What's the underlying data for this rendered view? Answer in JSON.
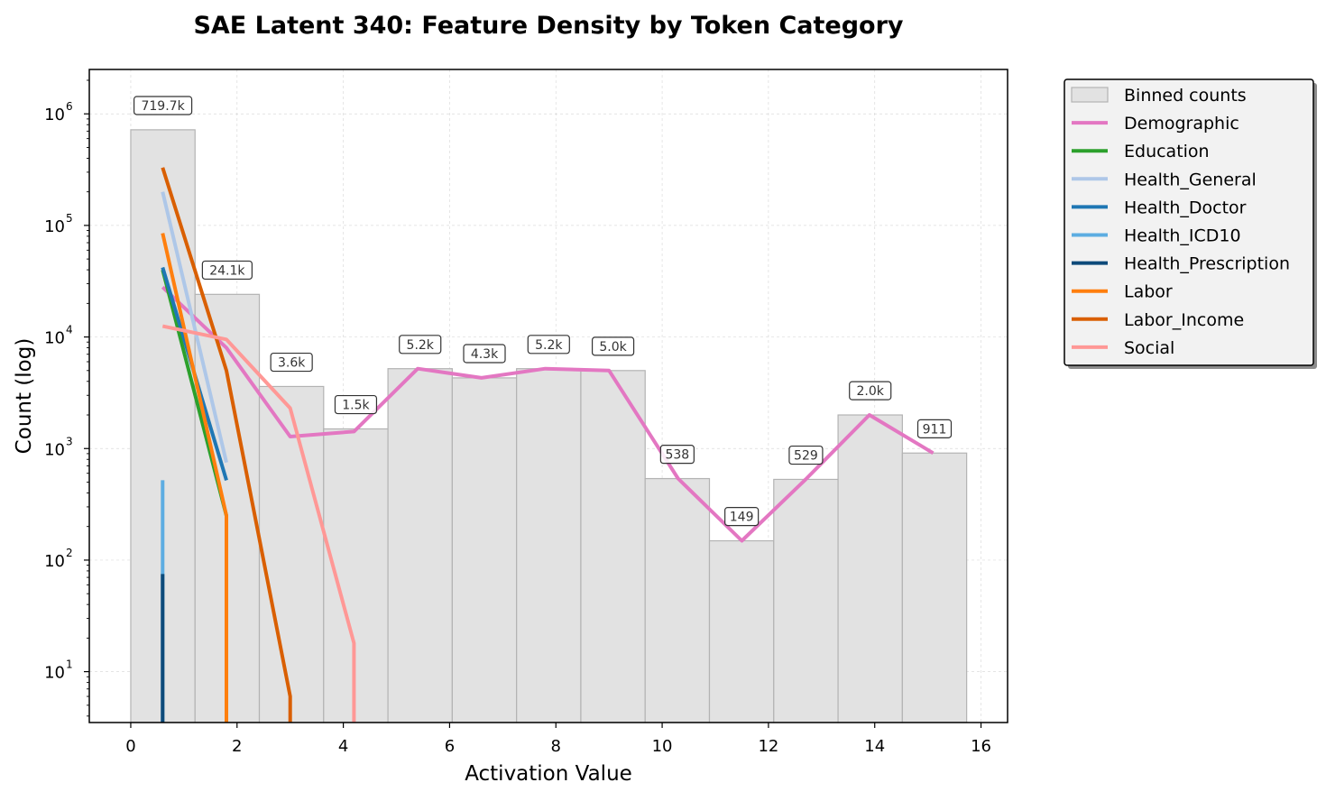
{
  "chart_data": {
    "type": "bar+line",
    "title": "SAE Latent 340: Feature Density by Token Category",
    "xlabel": "Activation Value",
    "ylabel": "Count (log)",
    "yscale": "log",
    "xlim": [
      -0.78,
      16.5
    ],
    "ylim": [
      3.5,
      2500000
    ],
    "grid": true,
    "legend_position": "outside-right",
    "x_ticks": [
      0,
      2,
      4,
      6,
      8,
      10,
      12,
      14,
      16
    ],
    "y_ticks": [
      {
        "value": 10,
        "base": "10",
        "exp": "1"
      },
      {
        "value": 100,
        "base": "10",
        "exp": "2"
      },
      {
        "value": 1000,
        "base": "10",
        "exp": "3"
      },
      {
        "value": 10000,
        "base": "10",
        "exp": "4"
      },
      {
        "value": 100000,
        "base": "10",
        "exp": "5"
      },
      {
        "value": 1000000,
        "base": "10",
        "exp": "6"
      }
    ],
    "bars": {
      "name": "Binned counts",
      "color": "#e2e2e2",
      "edge_color": "#b3b3b3",
      "bin_edges": [
        0,
        1.21,
        2.42,
        3.63,
        4.84,
        6.05,
        7.26,
        8.47,
        9.68,
        10.89,
        12.1,
        13.31,
        14.52,
        15.73
      ],
      "counts": [
        719700,
        24100,
        3600,
        1500,
        5200,
        4300,
        5200,
        5000,
        538,
        149,
        529,
        2000,
        911
      ],
      "labels": [
        "719.7k",
        "24.1k",
        "3.6k",
        "1.5k",
        "5.2k",
        "4.3k",
        "5.2k",
        "5.0k",
        "538",
        "149",
        "529",
        "2.0k",
        "911"
      ]
    },
    "series": [
      {
        "name": "Demographic",
        "color": "#e377c2",
        "points": [
          [
            0.6,
            28000
          ],
          [
            1.8,
            8000
          ],
          [
            3.0,
            1280
          ],
          [
            4.2,
            1420
          ],
          [
            5.4,
            5200
          ],
          [
            6.6,
            4300
          ],
          [
            7.8,
            5200
          ],
          [
            9.0,
            5000
          ],
          [
            10.3,
            538
          ],
          [
            11.5,
            149
          ],
          [
            12.7,
            529
          ],
          [
            13.9,
            2000
          ],
          [
            15.1,
            911
          ]
        ]
      },
      {
        "name": "Education",
        "color": "#2ca02c",
        "points": [
          [
            0.6,
            40000
          ],
          [
            1.8,
            250
          ]
        ]
      },
      {
        "name": "Health_General",
        "color": "#aec7e8",
        "points": [
          [
            0.6,
            200000
          ],
          [
            1.8,
            750
          ]
        ]
      },
      {
        "name": "Health_Doctor",
        "color": "#1f77b4",
        "points": [
          [
            0.6,
            42000
          ],
          [
            1.8,
            520
          ]
        ]
      },
      {
        "name": "Health_ICD10",
        "color": "#5dade2",
        "points": [
          [
            0.6,
            520
          ],
          [
            0.6,
            3.5
          ]
        ]
      },
      {
        "name": "Health_Prescription",
        "color": "#0d4a7a",
        "points": [
          [
            0.6,
            75
          ],
          [
            0.6,
            3.5
          ]
        ]
      },
      {
        "name": "Labor",
        "color": "#ff7f0e",
        "points": [
          [
            0.6,
            85000
          ],
          [
            1.8,
            250
          ],
          [
            1.8,
            3.5
          ]
        ]
      },
      {
        "name": "Labor_Income",
        "color": "#d95f02",
        "points": [
          [
            0.6,
            330000
          ],
          [
            1.8,
            5000
          ],
          [
            3.0,
            6
          ],
          [
            3.0,
            3.5
          ]
        ]
      },
      {
        "name": "Social",
        "color": "#ff9896",
        "points": [
          [
            0.6,
            12500
          ],
          [
            1.8,
            9500
          ],
          [
            3.0,
            2300
          ],
          [
            4.2,
            18
          ],
          [
            4.2,
            3.5
          ]
        ]
      }
    ]
  }
}
